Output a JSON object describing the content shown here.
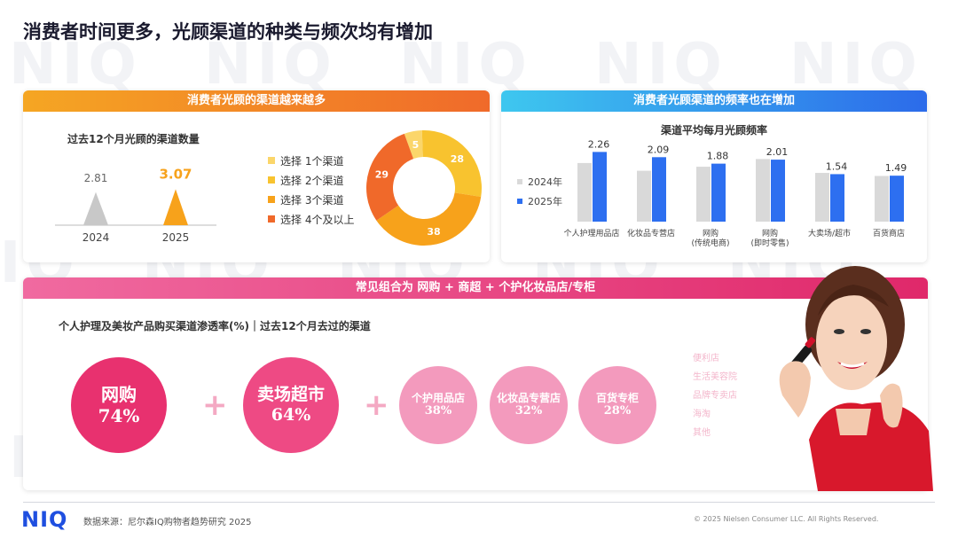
{
  "watermark_text": "NIQ",
  "title": "消费者时间更多，光顾渠道的种类与频次均有增加",
  "left_panel": {
    "header": "消费者光顾的渠道越来越多",
    "subtitle": "过去12个月光顾的渠道数量",
    "legend": [
      "选择 1个渠道",
      "选择 2个渠道",
      "选择 3个渠道",
      "选择 4个及以上"
    ]
  },
  "right_panel": {
    "header": "消费者光顾渠道的频率也在增加",
    "subtitle": "渠道平均每月光顾频率",
    "legend": [
      "2024年",
      "2025年"
    ]
  },
  "bottom_panel": {
    "header": "常见组合为 网购 + 商超 + 个护化妆品店/专柜",
    "subtitle": "个人护理及美妆产品购买渠道渗透率(%)｜过去12个月去过的渠道",
    "circles": [
      {
        "name": "网购",
        "value": "74%"
      },
      {
        "name": "卖场超市",
        "value": "64%"
      },
      {
        "name": "个护用品店",
        "value": "38%"
      },
      {
        "name": "化妆品专营店",
        "value": "32%"
      },
      {
        "name": "百货专柜",
        "value": "28%"
      }
    ],
    "faded_list": [
      "便利店",
      "生活美容院",
      "品牌专卖店",
      "海淘",
      "其他"
    ]
  },
  "footer": {
    "logo": "NIQ",
    "source": "数据来源：尼尔森IQ购物者趋势研究 2025",
    "copyright": "© 2025 Nielsen Consumer LLC. All Rights Reserved."
  },
  "colors": {
    "orange": "#f7a21b",
    "orange_dark": "#f0692a",
    "yellow": "#f8c32f",
    "light_yellow": "#fbd66a",
    "gray_bar": "#d9d9d9",
    "blue_bar": "#2d6ff0",
    "pink": "#e8316f",
    "pink_light": "#f08ab0"
  },
  "chart_data": [
    {
      "type": "area",
      "title": "过去12个月光顾的渠道数量",
      "categories": [
        "2024",
        "2025"
      ],
      "values": [
        2.81,
        3.07
      ],
      "value_labels": [
        "2.81",
        "3.07"
      ]
    },
    {
      "type": "pie",
      "categories": [
        "选择 1个渠道",
        "选择 2个渠道",
        "选择 3个渠道",
        "选择 4个及以上"
      ],
      "values": [
        5,
        28,
        38,
        29
      ]
    },
    {
      "type": "bar",
      "title": "渠道平均每月光顾频率",
      "categories": [
        "个人护理用品店",
        "化妆品专营店",
        "网购\n(传统电商)",
        "网购\n(即时零售)",
        "大卖场/超市",
        "百货商店"
      ],
      "series": [
        {
          "name": "2024年",
          "values": [
            1.9,
            1.65,
            1.78,
            2.03,
            1.58,
            1.48
          ]
        },
        {
          "name": "2025年",
          "values": [
            2.26,
            2.09,
            1.88,
            2.01,
            1.54,
            1.49
          ]
        }
      ],
      "data_labels": [
        "2.26",
        "2.09",
        "1.88",
        "2.01",
        "1.54",
        "1.49"
      ]
    }
  ]
}
